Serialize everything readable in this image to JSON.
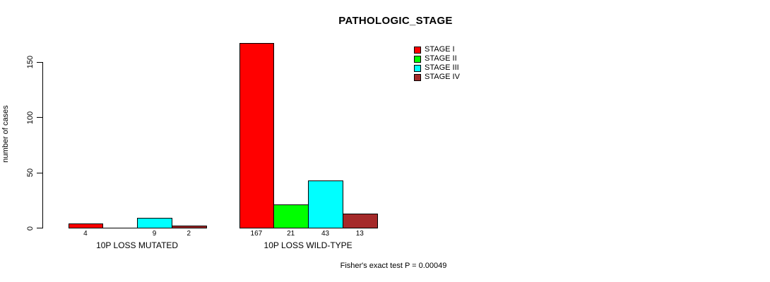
{
  "chart_data": {
    "type": "bar",
    "title": "PATHOLOGIC_STAGE",
    "ylabel": "number of cases",
    "xlabel": "",
    "categories": [
      "10P LOSS MUTATED",
      "10P LOSS WILD-TYPE"
    ],
    "series": [
      {
        "name": "STAGE I",
        "color": "#ff0000",
        "values": [
          4,
          167
        ]
      },
      {
        "name": "STAGE II",
        "color": "#00ff00",
        "values": [
          0,
          21
        ]
      },
      {
        "name": "STAGE III",
        "color": "#00ffff",
        "values": [
          9,
          43
        ]
      },
      {
        "name": "STAGE IV",
        "color": "#a52a2a",
        "values": [
          2,
          13
        ]
      }
    ],
    "y_ticks": [
      0,
      50,
      100,
      150
    ],
    "ylim": [
      0,
      175
    ],
    "grid": false,
    "legend_position": "top-right",
    "bar_value_labels_shown": true,
    "annotation": "Fisher's exact test P = 0.00049"
  }
}
